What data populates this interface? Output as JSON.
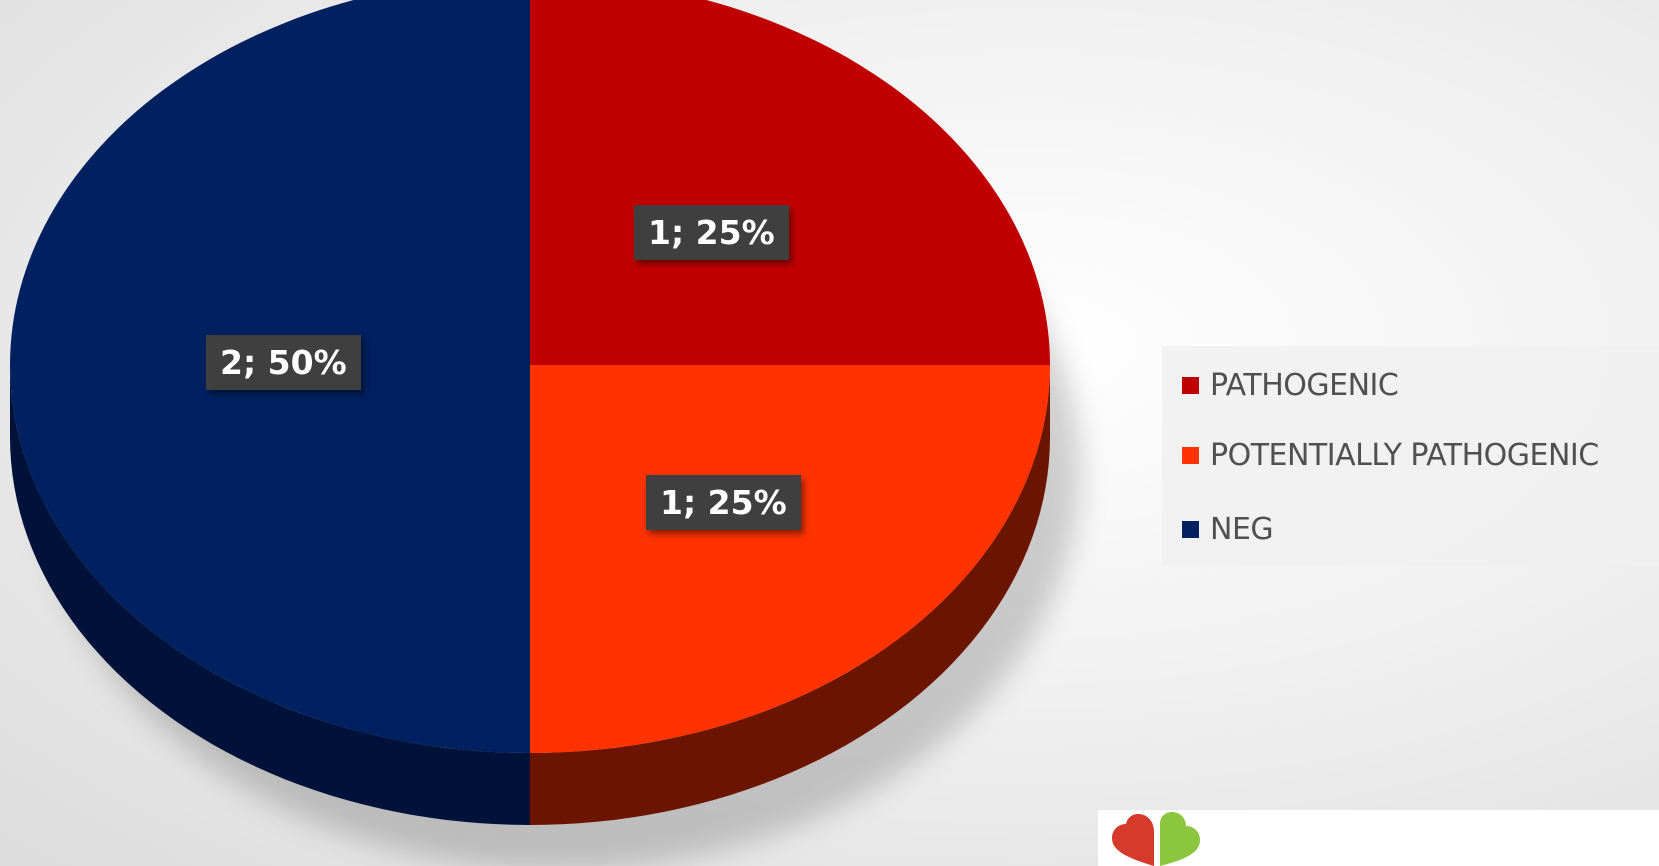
{
  "chart_data": {
    "type": "pie",
    "style": "3d",
    "slices": [
      {
        "name": "PATHOGENIC",
        "value": 1,
        "percent": 25,
        "label": "1; 25%",
        "color": "#c00000"
      },
      {
        "name": "POTENTIALLY PATHOGENIC",
        "value": 1,
        "percent": 25,
        "label": "1; 25%",
        "color": "#ff3300"
      },
      {
        "name": "NEG",
        "value": 2,
        "percent": 50,
        "label": "2; 50%",
        "color": "#002060"
      }
    ],
    "legend": {
      "placement": "right",
      "entries": [
        "PATHOGENIC",
        "POTENTIALLY PATHOGENIC",
        "NEG"
      ]
    },
    "title": ""
  },
  "colors": {
    "pathogenic_side": "#6b1400",
    "potentially_side": "#6b1400",
    "neg_side": "#00123a",
    "logo_red": "#d63a2b",
    "logo_green": "#8cc63f"
  }
}
